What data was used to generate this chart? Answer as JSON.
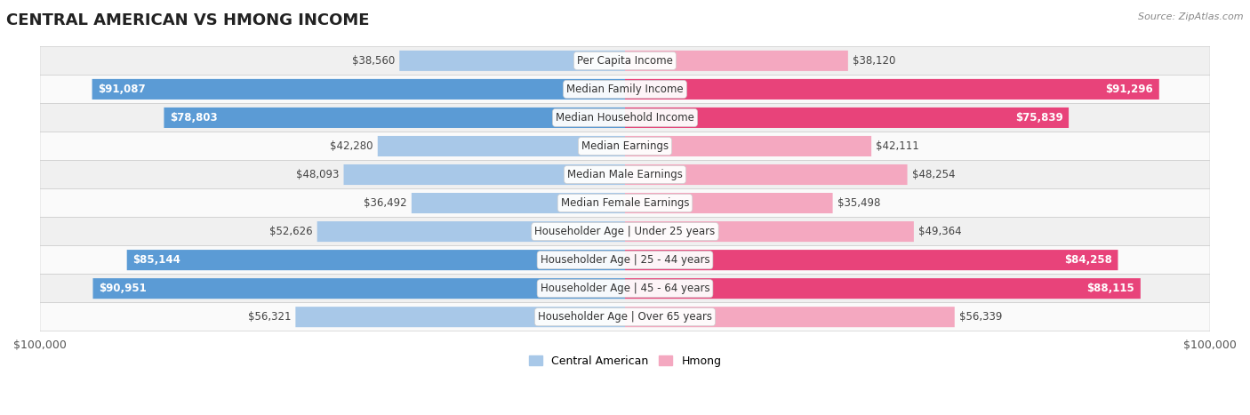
{
  "title": "CENTRAL AMERICAN VS HMONG INCOME",
  "source": "Source: ZipAtlas.com",
  "categories": [
    "Per Capita Income",
    "Median Family Income",
    "Median Household Income",
    "Median Earnings",
    "Median Male Earnings",
    "Median Female Earnings",
    "Householder Age | Under 25 years",
    "Householder Age | 25 - 44 years",
    "Householder Age | 45 - 64 years",
    "Householder Age | Over 65 years"
  ],
  "central_american": [
    38560,
    91087,
    78803,
    42280,
    48093,
    36492,
    52626,
    85144,
    90951,
    56321
  ],
  "hmong": [
    38120,
    91296,
    75839,
    42111,
    48254,
    35498,
    49364,
    84258,
    88115,
    56339
  ],
  "max_value": 100000,
  "ca_color_light": "#a8c8e8",
  "ca_color_dark": "#5b9bd5",
  "hmong_color_light": "#f4a8c0",
  "hmong_color_dark": "#e8437a",
  "dark_threshold": 60000,
  "bar_height": 0.72,
  "row_bg_even": "#f0f0f0",
  "row_bg_odd": "#fafafa",
  "label_fontsize": 8.5,
  "cat_fontsize": 8.5,
  "title_fontsize": 13,
  "legend_ca_label": "Central American",
  "legend_hmong_label": "Hmong"
}
